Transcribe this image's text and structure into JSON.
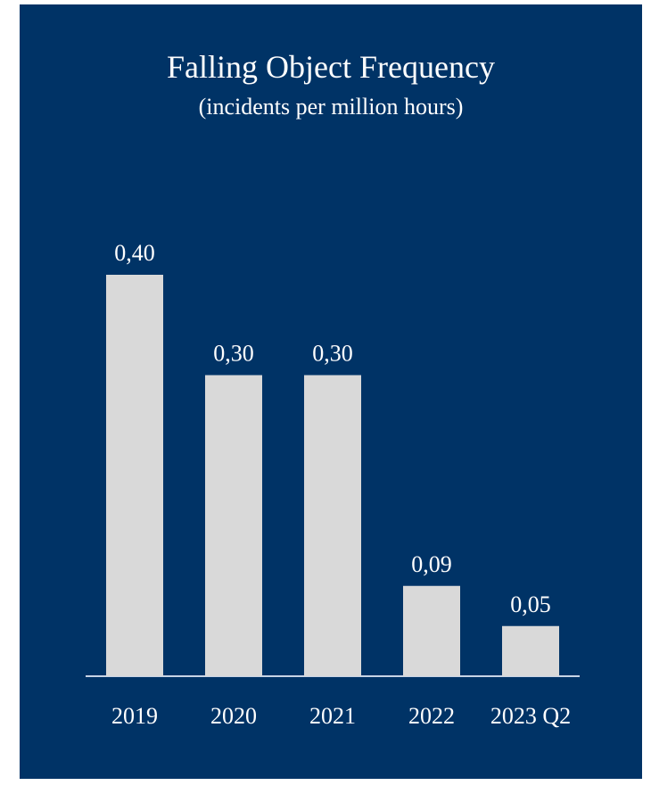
{
  "chart_data": {
    "type": "bar",
    "title": "Falling Object Frequency",
    "subtitle": "(incidents per million hours)",
    "categories": [
      "2019",
      "2020",
      "2021",
      "2022",
      "2023 Q2"
    ],
    "values": [
      0.4,
      0.3,
      0.3,
      0.09,
      0.05
    ],
    "value_labels": [
      "0,40",
      "0,30",
      "0,30",
      "0,09",
      "0,05"
    ],
    "xlabel": "",
    "ylabel": "",
    "ylim": [
      0,
      0.4
    ],
    "grid": false,
    "legend": "none"
  },
  "colors": {
    "background": "#003366",
    "bar": "#d9d9d9",
    "axis": "#c8d4e6",
    "text": "#ffffff"
  }
}
